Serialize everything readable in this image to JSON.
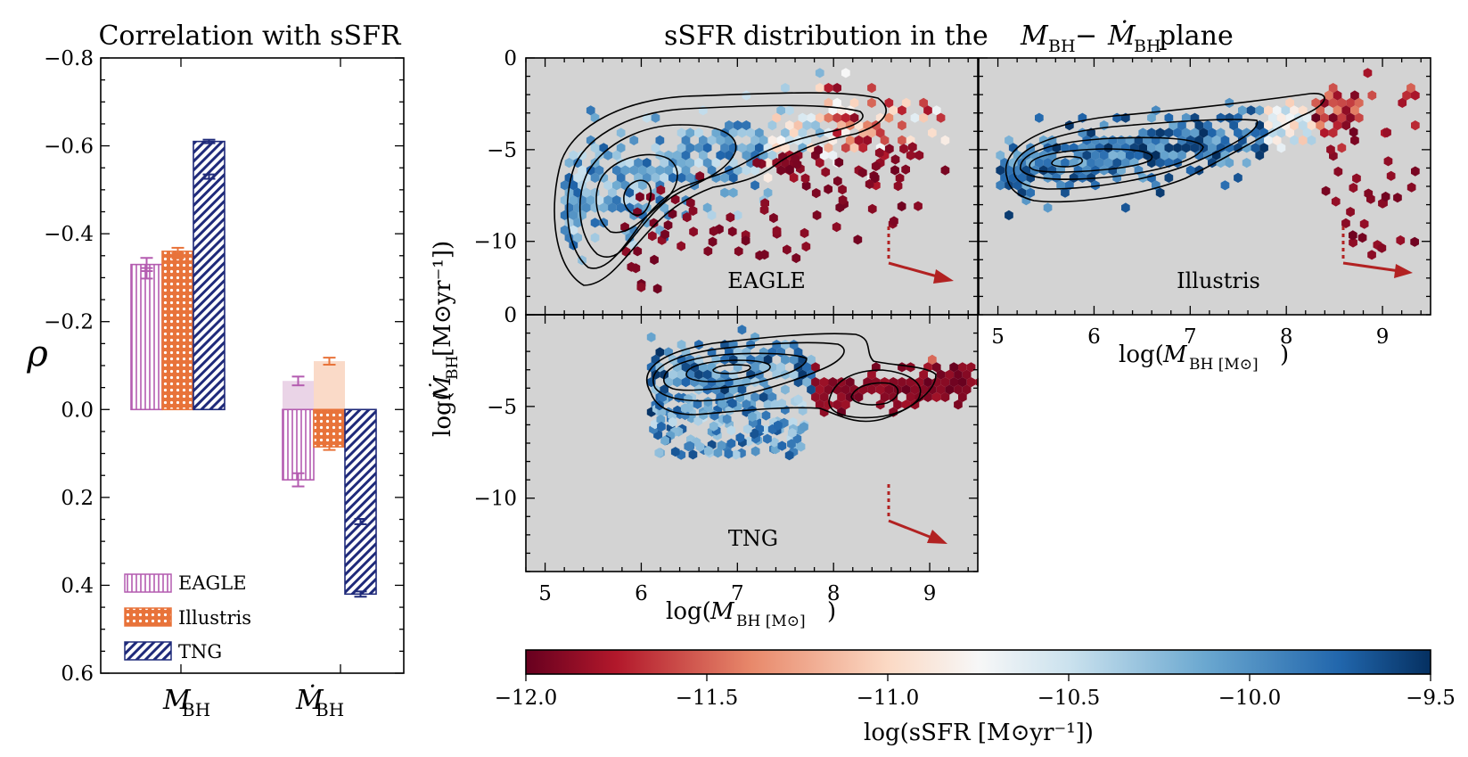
{
  "bar_panel": {
    "title": "Correlation with sSFR",
    "ylabel": "ρ",
    "yticks": [
      "−0.8",
      "−0.6",
      "−0.4",
      "−0.2",
      "0.0",
      "0.2",
      "0.4",
      "0.6"
    ],
    "legend": [
      "EAGLE",
      "Illustris",
      "TNG"
    ]
  },
  "hex_panel": {
    "title": "sSFR distribution in the M_BH − Ṁ_BH plane",
    "title_parts": {
      "lead": "sSFR distribution in the ",
      "m": "M",
      "sub": "BH",
      "dash": " − ",
      "mdot": "Ṁ",
      "tail": " plane"
    },
    "ylabel": {
      "pre": "log(",
      "m": "Ṁ",
      "sub": "BH",
      "post": " [M⊙yr⁻¹])"
    },
    "xlabel": {
      "pre": "log(",
      "m": "M",
      "sub": "BH [M⊙]",
      "post": ")"
    },
    "xticks": [
      "5",
      "6",
      "7",
      "8",
      "9"
    ],
    "yticks_top": [
      "0",
      "−5",
      "−10"
    ],
    "yticks_bottom": [
      "0",
      "−5",
      "−10"
    ],
    "panels": [
      "EAGLE",
      "Illustris",
      "TNG"
    ]
  },
  "colorbar": {
    "ticks": [
      "−12.0",
      "−11.5",
      "−11.0",
      "−10.5",
      "−10.0",
      "−9.5"
    ],
    "label": "log(sSFR [M⊙yr⁻¹])"
  },
  "colors": {
    "eagle": "#b45cb0",
    "eagle_light": "#e6cce3",
    "illustris": "#e8733a",
    "illustris_light": "#f9d3be",
    "tng": "#1f2a7a",
    "tng_light": "#c9cde6",
    "panel_bg": "#d3d3d3",
    "arrow": "#b22222"
  },
  "chart_data": [
    {
      "type": "bar",
      "title": "Correlation with sSFR",
      "ylabel": "ρ",
      "ylim": [
        0.6,
        -0.8
      ],
      "y_inverted": true,
      "categories": [
        "M_BH",
        "Ṁ_BH"
      ],
      "category_labels": [
        {
          "m": "M",
          "sub": "BH"
        },
        {
          "m": "Ṁ",
          "sub": "BH"
        }
      ],
      "series": [
        {
          "name": "EAGLE",
          "values": [
            -0.33,
            0.16
          ],
          "errors": [
            0.015,
            0.015
          ],
          "second_values": [
            -0.31,
            -0.065
          ],
          "second_errors": [
            0.012,
            0.01
          ]
        },
        {
          "name": "Illustris",
          "values": [
            -0.36,
            0.085
          ],
          "errors": [
            0.008,
            0.007
          ],
          "second_values": [
            -0.35,
            -0.11
          ],
          "second_errors": [
            0.006,
            0.008
          ]
        },
        {
          "name": "TNG",
          "values": [
            -0.61,
            0.42
          ],
          "errors": [
            0.004,
            0.006
          ],
          "second_values": [
            -0.53,
            0.255
          ],
          "second_errors": [
            0.005,
            0.006
          ]
        }
      ],
      "legend_position": "bottom-left"
    },
    {
      "type": "heatmap",
      "title": "sSFR distribution in the M_BH − Ṁ_BH plane",
      "xlabel": "log(M_BH [M⊙])",
      "ylabel": "log(Ṁ_BH [M⊙yr⁻¹])",
      "xlim": [
        4.8,
        9.5
      ],
      "ylim": [
        -14,
        0
      ],
      "colorbar_label": "log(sSFR [M⊙yr⁻¹])",
      "colorbar_range": [
        -12.0,
        -9.5
      ],
      "panels": [
        {
          "name": "EAGLE",
          "ssfr_peak": {
            "x": 5.8,
            "y": -7.3
          },
          "quenched_tail": {
            "x": [
              7.0,
              9.0
            ],
            "y": [
              -9,
              -6
            ]
          }
        },
        {
          "name": "Illustris",
          "ssfr_peak": {
            "x": 5.6,
            "y": -5.8
          },
          "quenched_tail": {
            "x": [
              8.3,
              9.3
            ],
            "y": [
              -1,
              -5
            ]
          }
        },
        {
          "name": "TNG",
          "ssfr_peak": {
            "x": 6.6,
            "y": -3.2
          },
          "quenched_tail": {
            "x": [
              7.9,
              9.5
            ],
            "y": [
              -3,
              -5
            ]
          }
        }
      ]
    }
  ]
}
